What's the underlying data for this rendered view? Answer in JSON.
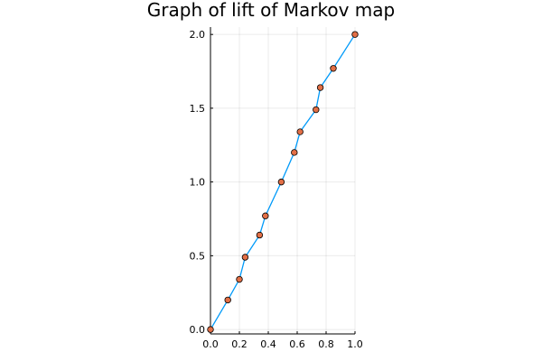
{
  "chart_data": {
    "type": "scatter",
    "title": "Graph of lift of Markov map",
    "xlabel": "",
    "ylabel": "",
    "xlim": [
      0,
      1
    ],
    "ylim": [
      -0.03,
      2.05
    ],
    "x_ticks": [
      0.0,
      0.2,
      0.4,
      0.6,
      0.8,
      1.0
    ],
    "x_tick_labels": [
      "0.0",
      "0.2",
      "0.4",
      "0.6",
      "0.8",
      "1.0"
    ],
    "y_ticks": [
      0.0,
      0.5,
      1.0,
      1.5,
      2.0
    ],
    "y_tick_labels": [
      "0.0",
      "0.5",
      "1.0",
      "1.5",
      "2.0"
    ],
    "grid": true,
    "legend": "none",
    "series": [
      {
        "kind": "line",
        "color": "#009af9",
        "x": [
          0.0,
          0.12,
          0.2,
          0.24,
          0.34,
          0.38,
          0.49,
          0.58,
          0.62,
          0.73,
          0.76,
          0.85,
          1.0
        ],
        "y": [
          0.0,
          0.2,
          0.34,
          0.49,
          0.64,
          0.77,
          1.0,
          1.2,
          1.34,
          1.49,
          1.64,
          1.77,
          2.0
        ]
      },
      {
        "kind": "scatter",
        "color": "#e26f46",
        "x": [
          0.0,
          0.12,
          0.2,
          0.24,
          0.34,
          0.38,
          0.49,
          0.58,
          0.62,
          0.73,
          0.76,
          0.85,
          1.0
        ],
        "y": [
          0.0,
          0.2,
          0.34,
          0.49,
          0.64,
          0.77,
          1.0,
          1.2,
          1.34,
          1.49,
          1.64,
          1.77,
          2.0
        ]
      }
    ]
  }
}
